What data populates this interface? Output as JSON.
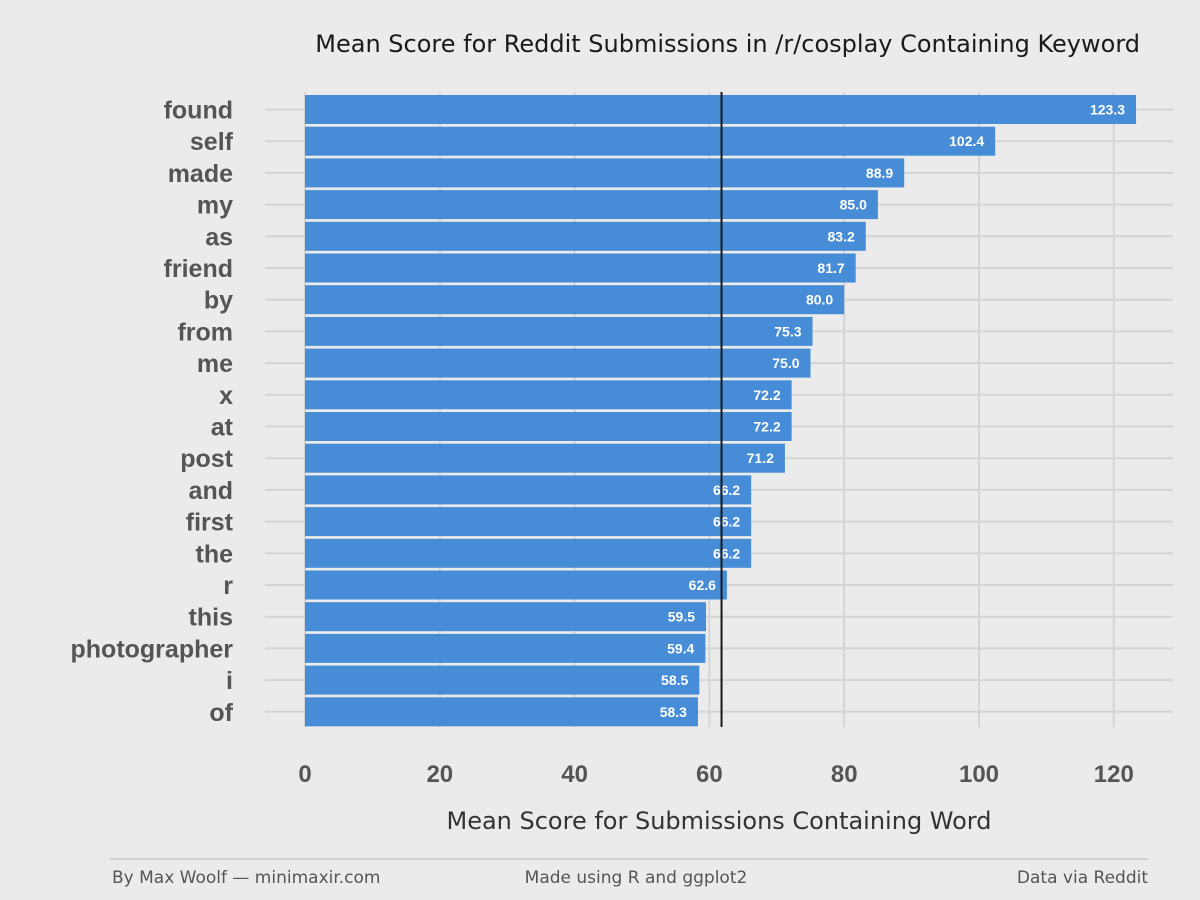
{
  "chart_data": {
    "type": "bar",
    "orientation": "horizontal",
    "title": "Mean Score for Reddit Submissions in /r/cosplay Containing Keyword",
    "xlabel": "Mean Score for Submissions Containing Word",
    "ylabel": "",
    "categories": [
      "found",
      "self",
      "made",
      "my",
      "as",
      "friend",
      "by",
      "from",
      "me",
      "x",
      "at",
      "post",
      "and",
      "first",
      "the",
      "r",
      "this",
      "photographer",
      "i",
      "of"
    ],
    "values": [
      123.3,
      102.4,
      88.9,
      85.0,
      83.2,
      81.7,
      80.0,
      75.3,
      75.0,
      72.2,
      72.2,
      71.2,
      66.2,
      66.2,
      66.2,
      62.6,
      59.5,
      59.4,
      58.5,
      58.3
    ],
    "value_labels": [
      "123.3",
      "102.4",
      "88.9",
      "85.0",
      "83.2",
      "81.7",
      "80.0",
      "75.3",
      "75.0",
      "72.2",
      "72.2",
      "71.2",
      "66.2",
      "66.2",
      "66.2",
      "62.6",
      "59.5",
      "59.4",
      "58.5",
      "58.3"
    ],
    "xlim": [
      0,
      128
    ],
    "x_ticks": [
      0,
      20,
      40,
      60,
      80,
      100,
      120
    ],
    "x_tick_labels": [
      "0",
      "20",
      "40",
      "60",
      "80",
      "100",
      "120"
    ],
    "reference_line": 61.8,
    "bar_color": "#3d87d6",
    "reference_line_color": "#1a1a1a",
    "grid": true
  },
  "footer": {
    "left": "By Max Woolf — minimaxir.com",
    "center": "Made using R and ggplot2",
    "right": "Data via Reddit"
  },
  "colors": {
    "background": "#ebebeb",
    "grid": "#d4d4d4",
    "text": "#555555"
  }
}
